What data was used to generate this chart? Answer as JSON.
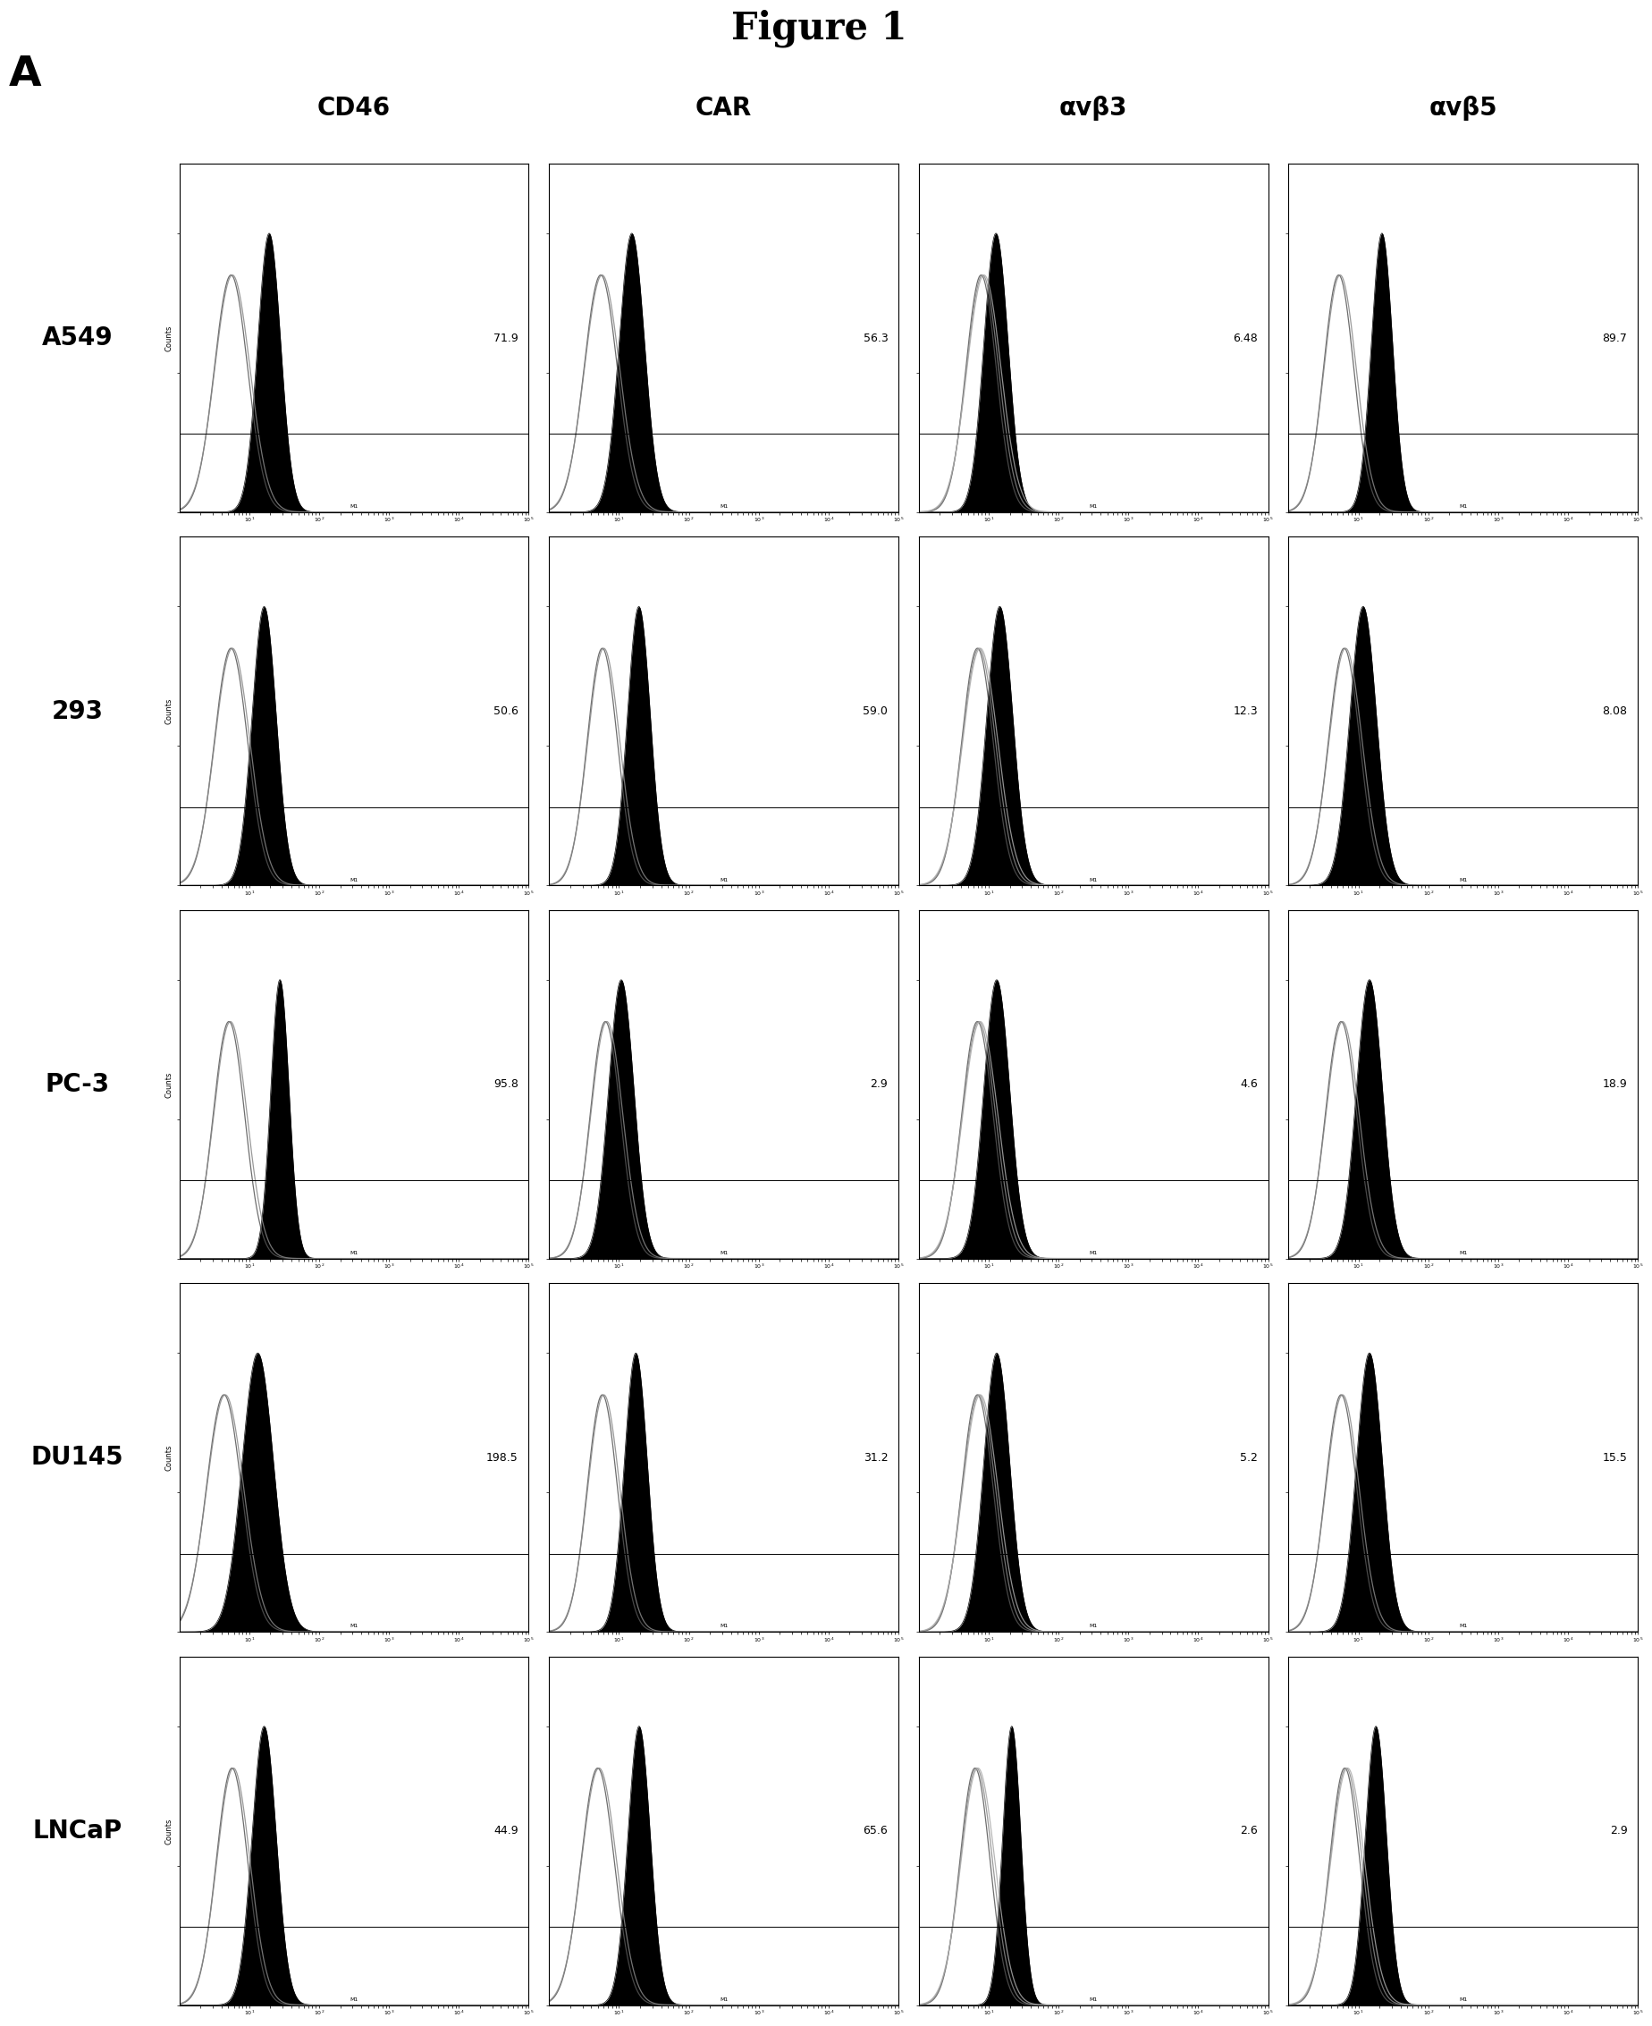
{
  "figure_title": "Figure 1",
  "panel_label": "A",
  "col_labels": [
    "CD46",
    "CAR",
    "αvβ3",
    "αvβ5"
  ],
  "row_labels": [
    "A549",
    "293",
    "PC-3",
    "DU145",
    "LNCaP"
  ],
  "values": [
    [
      "71.9",
      "56.3",
      "6.48",
      "89.7"
    ],
    [
      "50.6",
      "59.0",
      "12.3",
      "8.08"
    ],
    [
      "95.8",
      "2.9",
      "4.6",
      "18.9"
    ],
    [
      "198.5",
      "31.2",
      "5.2",
      "15.5"
    ],
    [
      "44.9",
      "65.6",
      "2.6",
      "2.9"
    ]
  ],
  "nrows": 5,
  "ncols": 4,
  "background_color": "#ffffff",
  "cell_params": {
    "0_0": {
      "iso_mu": 2.0,
      "iso_sig": 0.55,
      "sta_mu": 3.1,
      "sta_sig": 0.38,
      "n_iso": 2
    },
    "0_1": {
      "iso_mu": 2.0,
      "iso_sig": 0.55,
      "sta_mu": 2.9,
      "sta_sig": 0.42,
      "n_iso": 2
    },
    "0_2": {
      "iso_mu": 2.3,
      "iso_sig": 0.5,
      "sta_mu": 2.7,
      "sta_sig": 0.4,
      "n_iso": 3
    },
    "0_3": {
      "iso_mu": 1.9,
      "iso_sig": 0.5,
      "sta_mu": 3.2,
      "sta_sig": 0.35,
      "n_iso": 2
    },
    "1_0": {
      "iso_mu": 2.0,
      "iso_sig": 0.55,
      "sta_mu": 2.95,
      "sta_sig": 0.4,
      "n_iso": 2
    },
    "1_1": {
      "iso_mu": 2.0,
      "iso_sig": 0.5,
      "sta_mu": 3.1,
      "sta_sig": 0.38,
      "n_iso": 2
    },
    "1_2": {
      "iso_mu": 2.2,
      "iso_sig": 0.52,
      "sta_mu": 2.85,
      "sta_sig": 0.43,
      "n_iso": 3
    },
    "1_3": {
      "iso_mu": 2.1,
      "iso_sig": 0.52,
      "sta_mu": 2.65,
      "sta_sig": 0.44,
      "n_iso": 2
    },
    "2_0": {
      "iso_mu": 1.9,
      "iso_sig": 0.52,
      "sta_mu": 3.4,
      "sta_sig": 0.3,
      "n_iso": 2
    },
    "2_1": {
      "iso_mu": 2.1,
      "iso_sig": 0.5,
      "sta_mu": 2.55,
      "sta_sig": 0.42,
      "n_iso": 2
    },
    "2_2": {
      "iso_mu": 2.2,
      "iso_sig": 0.52,
      "sta_mu": 2.75,
      "sta_sig": 0.43,
      "n_iso": 3
    },
    "2_3": {
      "iso_mu": 2.0,
      "iso_sig": 0.52,
      "sta_mu": 2.85,
      "sta_sig": 0.43,
      "n_iso": 2
    },
    "3_0": {
      "iso_mu": 1.8,
      "iso_sig": 0.58,
      "sta_mu": 2.85,
      "sta_sig": 0.52,
      "n_iso": 2
    },
    "3_1": {
      "iso_mu": 2.0,
      "iso_sig": 0.5,
      "sta_mu": 3.0,
      "sta_sig": 0.38,
      "n_iso": 2
    },
    "3_2": {
      "iso_mu": 2.2,
      "iso_sig": 0.52,
      "sta_mu": 2.75,
      "sta_sig": 0.43,
      "n_iso": 3
    },
    "3_3": {
      "iso_mu": 2.0,
      "iso_sig": 0.52,
      "sta_mu": 2.85,
      "sta_sig": 0.43,
      "n_iso": 2
    },
    "4_0": {
      "iso_mu": 2.0,
      "iso_sig": 0.52,
      "sta_mu": 2.95,
      "sta_sig": 0.4,
      "n_iso": 2
    },
    "4_1": {
      "iso_mu": 1.9,
      "iso_sig": 0.55,
      "sta_mu": 3.1,
      "sta_sig": 0.37,
      "n_iso": 2
    },
    "4_2": {
      "iso_mu": 2.1,
      "iso_sig": 0.5,
      "sta_mu": 3.15,
      "sta_sig": 0.3,
      "n_iso": 3
    },
    "4_3": {
      "iso_mu": 2.1,
      "iso_sig": 0.5,
      "sta_mu": 3.0,
      "sta_sig": 0.35,
      "n_iso": 3
    }
  }
}
